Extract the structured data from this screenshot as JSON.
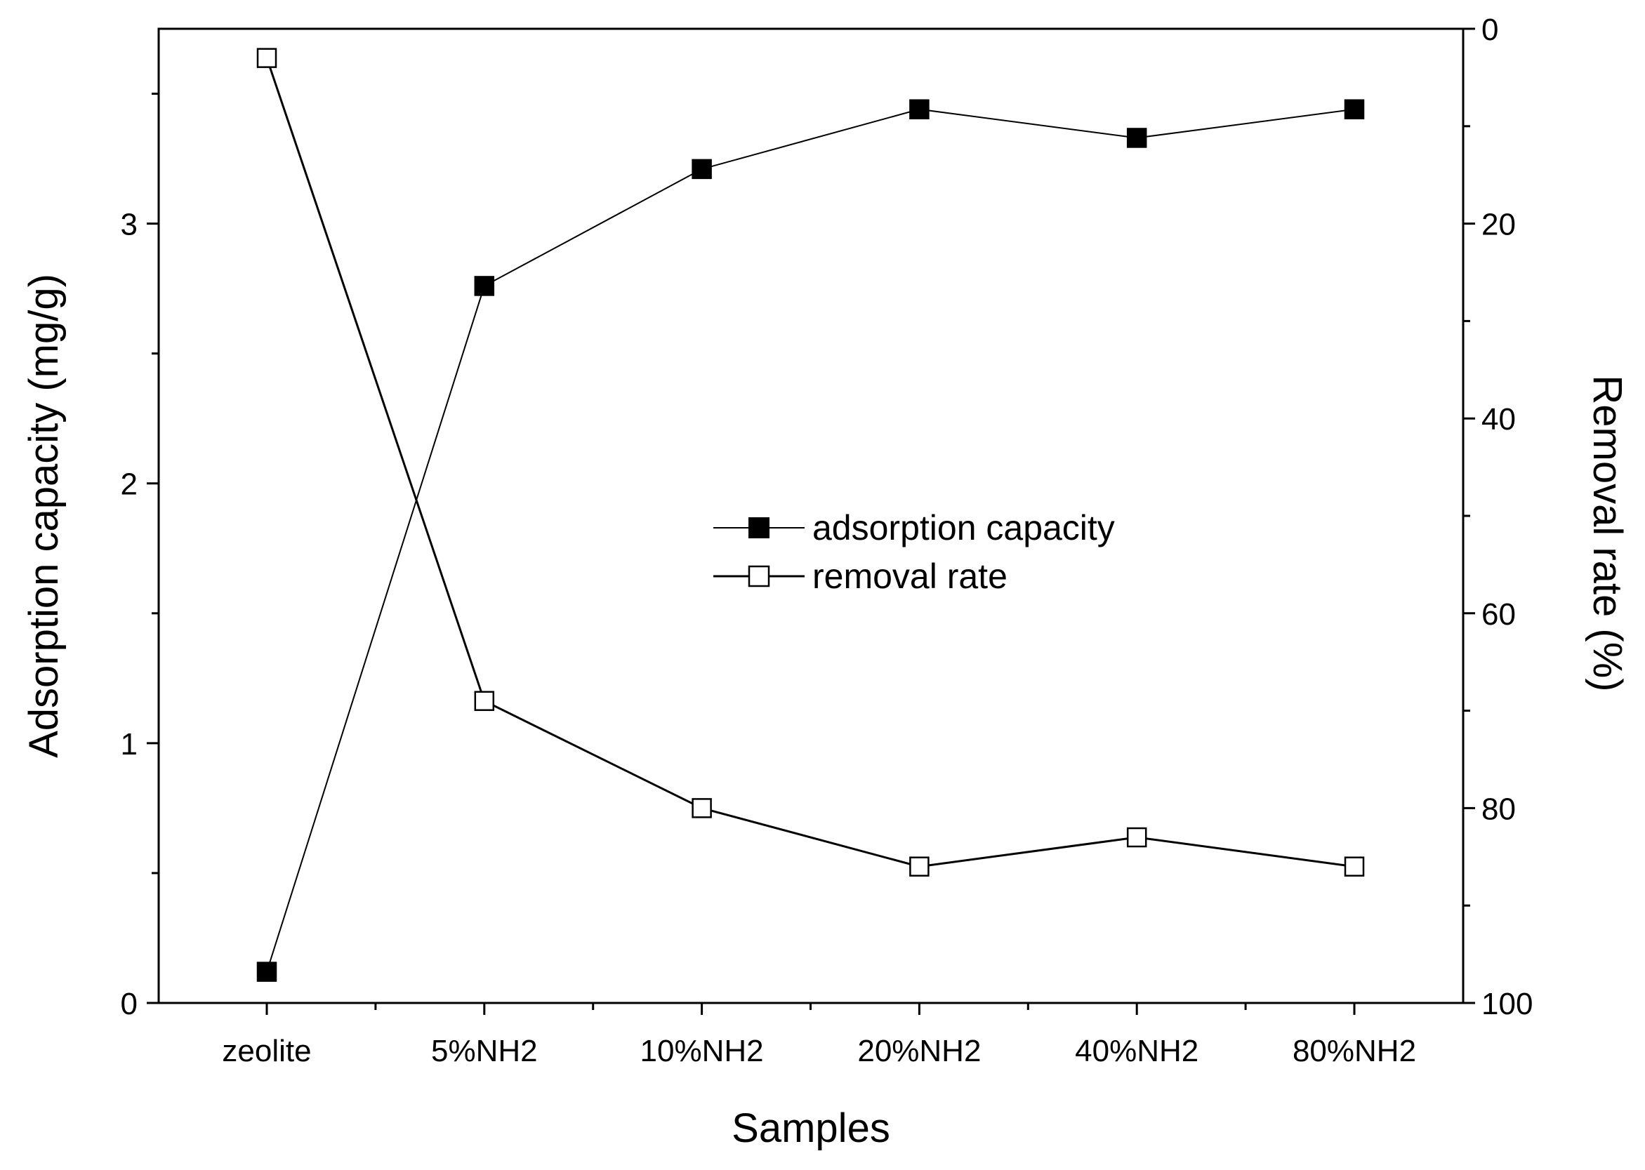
{
  "chart_data": {
    "type": "line",
    "title": "",
    "xlabel": "Samples",
    "ylabel": "Adsorption capacity (mg/g)",
    "y2label": "Removal rate (%)",
    "categories": [
      "zeolite",
      "5%NH2",
      "10%NH2",
      "20%NH2",
      "40%NH2",
      "80%NH2"
    ],
    "ylim": [
      0,
      3.75
    ],
    "yticks": [
      0,
      1,
      2,
      3
    ],
    "y_minor_step": 0.5,
    "y2lim": [
      100,
      0
    ],
    "y2ticks": [
      0,
      20,
      40,
      60,
      80,
      100
    ],
    "y2_minor_step": 10,
    "y2_inverted": true,
    "grid": false,
    "legend_position": "center",
    "series": [
      {
        "name": "adsorption capacity",
        "axis": "left",
        "marker": "filled-square",
        "values": [
          0.12,
          2.76,
          3.21,
          3.44,
          3.33,
          3.44
        ]
      },
      {
        "name": "removal rate",
        "axis": "right",
        "marker": "open-square",
        "values": [
          3,
          69,
          80,
          86,
          83,
          86
        ]
      }
    ],
    "colors": {
      "line": "#000000",
      "marker_fill": "#000000",
      "marker_open_fill": "#ffffff",
      "background": "#ffffff"
    }
  }
}
